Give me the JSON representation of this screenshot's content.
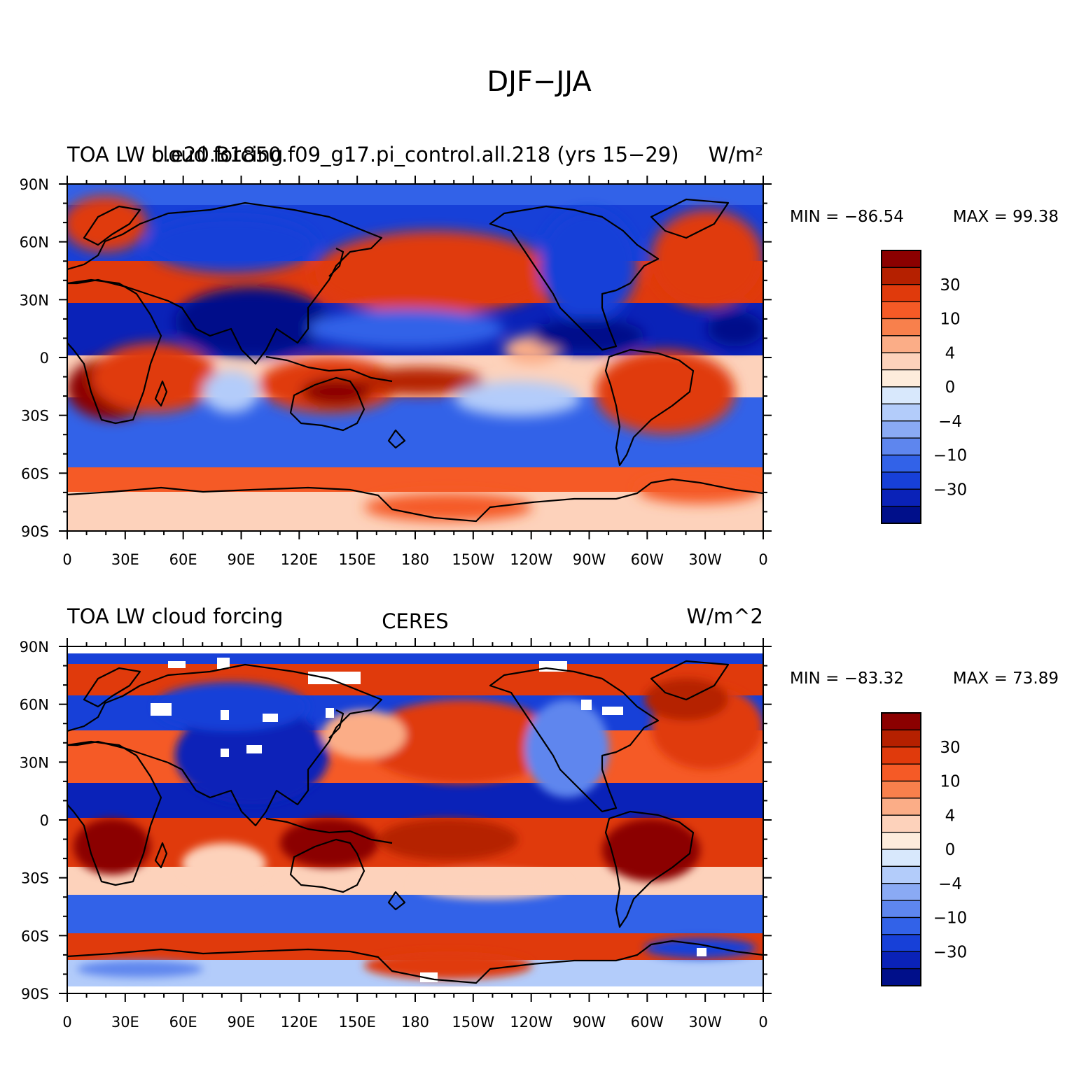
{
  "figure": {
    "title": "DJF−JJA"
  },
  "panels": [
    {
      "left_title": "TOA LW cloud forcing",
      "center_title": "b.e20.B1850.f09_g17.pi_control.all.218 (yrs 15−29)",
      "right_title": "W/m²",
      "min_label": "MIN = −86.54",
      "max_label": "MAX =  99.38"
    },
    {
      "left_title": "TOA LW cloud forcing",
      "center_title": "CERES",
      "right_title": "W/m^2",
      "min_label": "MIN = −83.32",
      "max_label": "MAX =  73.89"
    }
  ],
  "axes": {
    "lon_ticks": [
      "0",
      "30E",
      "60E",
      "90E",
      "120E",
      "150E",
      "180",
      "150W",
      "120W",
      "90W",
      "60W",
      "30W",
      "0"
    ],
    "lat_ticks": [
      "90N",
      "60N",
      "30N",
      "0",
      "30S",
      "60S",
      "90S"
    ]
  },
  "colorbar": {
    "labels": [
      "30",
      "10",
      "4",
      "0",
      "−4",
      "−10",
      "−30"
    ],
    "colors": [
      "#8b0000",
      "#b52000",
      "#e03a0c",
      "#f55a26",
      "#f8804c",
      "#fbad87",
      "#fdd2bb",
      "#fdecdc",
      "#d8e8fc",
      "#b3ccfa",
      "#8aaaf4",
      "#5e86ee",
      "#3262e8",
      "#1740d8",
      "#0a22b8",
      "#000f8a"
    ]
  },
  "map_colors": {
    "ocean_background": "#ffffff",
    "coastline": "#000000"
  }
}
